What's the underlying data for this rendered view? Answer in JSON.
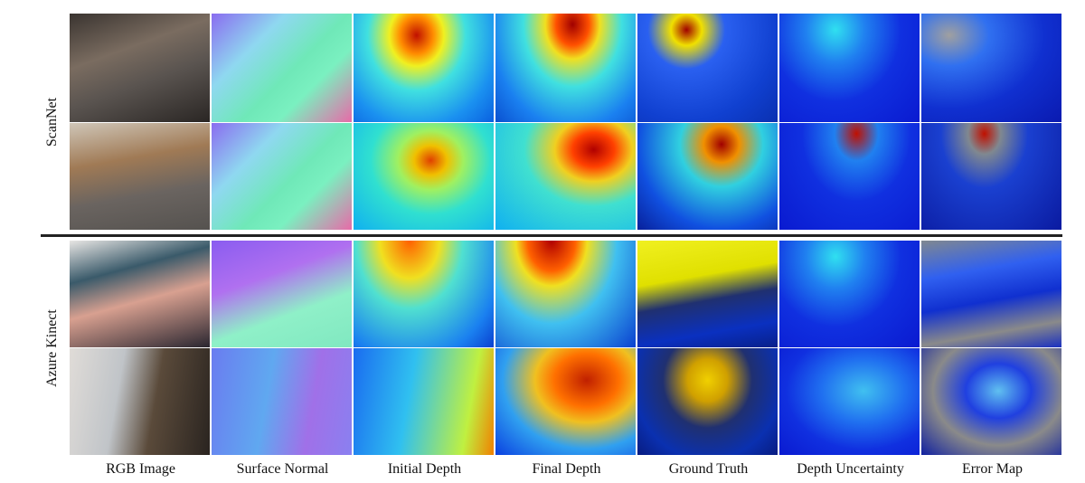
{
  "row_groups": [
    {
      "label": "ScanNet"
    },
    {
      "label": "Azure Kinect"
    }
  ],
  "columns": [
    "RGB Image",
    "Surface Normal",
    "Initial Depth",
    "Final Depth",
    "Ground Truth",
    "Depth Uncertainty",
    "Error Map"
  ]
}
